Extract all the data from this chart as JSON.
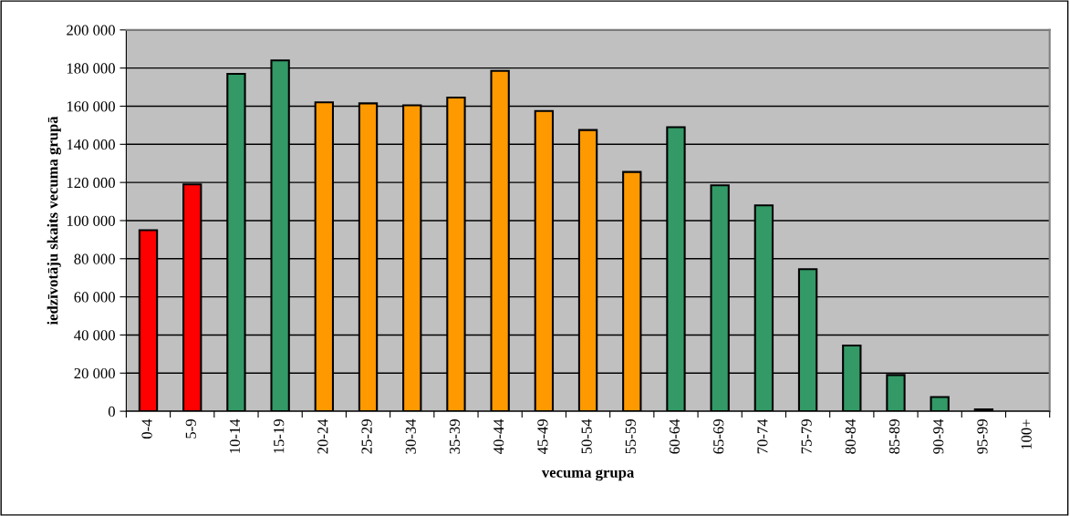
{
  "chart_data": {
    "type": "bar",
    "xlabel": "vecuma grupa",
    "ylabel": "iedzīvotāju skaits vecuma grupā",
    "categories": [
      "0-4",
      "5-9",
      "10-14",
      "15-19",
      "20-24",
      "25-29",
      "30-34",
      "35-39",
      "40-44",
      "45-49",
      "50-54",
      "55-59",
      "60-64",
      "65-69",
      "70-74",
      "75-79",
      "80-84",
      "85-89",
      "90-94",
      "95-99",
      "100+"
    ],
    "values": [
      95000,
      119000,
      177000,
      184000,
      162000,
      161500,
      160500,
      164500,
      178500,
      157500,
      147500,
      125500,
      149000,
      118500,
      108000,
      74500,
      34500,
      19000,
      7500,
      1000,
      null
    ],
    "colors": [
      "#ff0000",
      "#ff0000",
      "#339966",
      "#339966",
      "#ff9900",
      "#ff9900",
      "#ff9900",
      "#ff9900",
      "#ff9900",
      "#ff9900",
      "#ff9900",
      "#ff9900",
      "#339966",
      "#339966",
      "#339966",
      "#339966",
      "#339966",
      "#339966",
      "#339966",
      "#339966",
      "#339966"
    ],
    "ylim": [
      0,
      200000
    ],
    "yticks": [
      {
        "value": 0,
        "label": "0"
      },
      {
        "value": 20000,
        "label": "20 000"
      },
      {
        "value": 40000,
        "label": "40 000"
      },
      {
        "value": 60000,
        "label": "60 000"
      },
      {
        "value": 80000,
        "label": "80 000"
      },
      {
        "value": 100000,
        "label": "100 000"
      },
      {
        "value": 120000,
        "label": "120 000"
      },
      {
        "value": 140000,
        "label": "140 000"
      },
      {
        "value": 160000,
        "label": "160 000"
      },
      {
        "value": 180000,
        "label": "180 000"
      },
      {
        "value": 200000,
        "label": "200 000"
      }
    ],
    "grid": "y"
  }
}
